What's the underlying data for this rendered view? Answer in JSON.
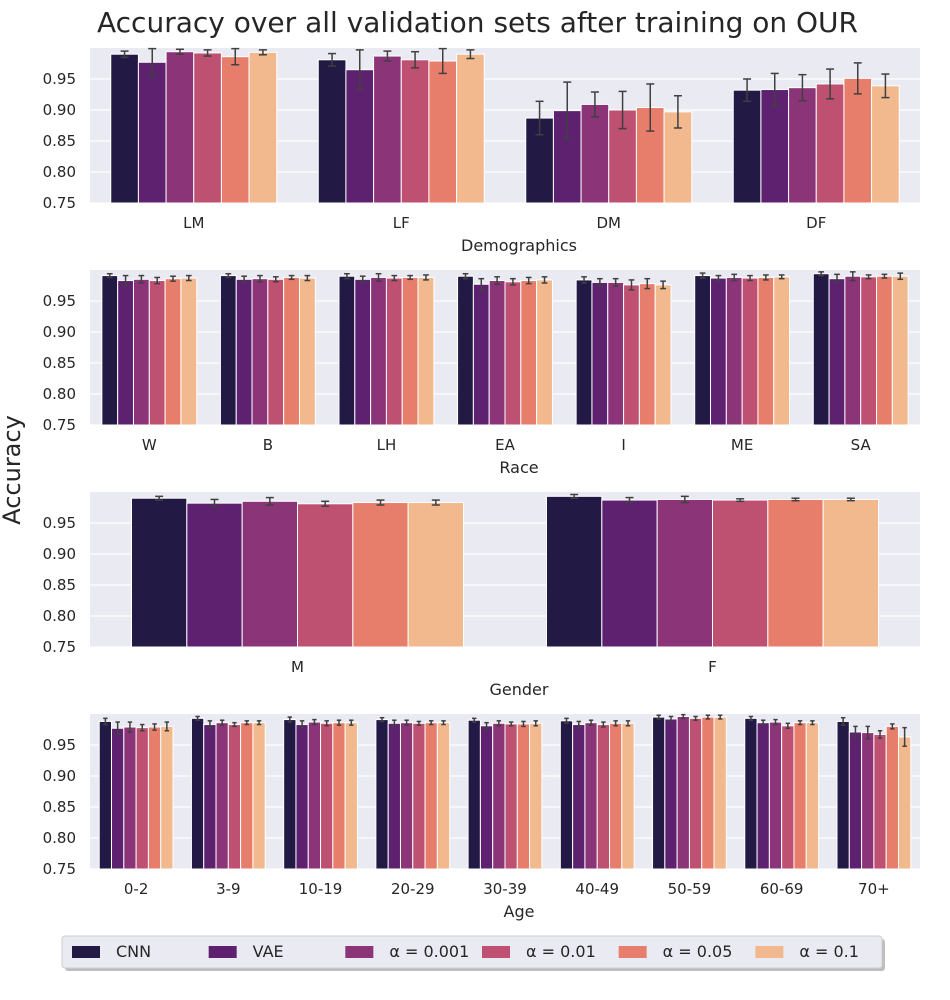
{
  "figure": {
    "title": "Accuracy over all validation sets after training on OUR",
    "ylabel": "Accuracy"
  },
  "colors": {
    "background": "#EAEAF2",
    "grid": "#FFFFFF",
    "series": [
      "#221A45",
      "#5D2170",
      "#8B3478",
      "#BE5172",
      "#E77E6B",
      "#F1B98D"
    ],
    "errorbar": "#404040"
  },
  "legend": {
    "placement": "bottom-center",
    "entries": [
      "CNN",
      "VAE",
      "α = 0.001",
      "α = 0.01",
      "α = 0.05",
      "α = 0.1"
    ]
  },
  "chart_data": [
    {
      "type": "bar",
      "xlabel": "Demographics",
      "ylabel": "",
      "ylim": [
        0.75,
        1.0
      ],
      "yticks": [
        "0.75",
        "0.80",
        "0.85",
        "0.90",
        "0.95"
      ],
      "grid": true,
      "categories": [
        "LM",
        "LF",
        "DM",
        "DF"
      ],
      "series": [
        {
          "name": "CNN",
          "values": [
            0.99,
            0.981,
            0.887,
            0.932
          ],
          "errors": [
            0.005,
            0.01,
            0.027,
            0.018
          ]
        },
        {
          "name": "VAE",
          "values": [
            0.977,
            0.965,
            0.899,
            0.933
          ],
          "errors": [
            0.022,
            0.032,
            0.046,
            0.026
          ]
        },
        {
          "name": "α = 0.001",
          "values": [
            0.994,
            0.987,
            0.909,
            0.936
          ],
          "errors": [
            0.004,
            0.008,
            0.02,
            0.021
          ]
        },
        {
          "name": "α = 0.01",
          "values": [
            0.992,
            0.981,
            0.9,
            0.942
          ],
          "errors": [
            0.005,
            0.013,
            0.03,
            0.024
          ]
        },
        {
          "name": "α = 0.05",
          "values": [
            0.986,
            0.979,
            0.904,
            0.951
          ],
          "errors": [
            0.013,
            0.02,
            0.038,
            0.025
          ]
        },
        {
          "name": "α = 0.1",
          "values": [
            0.993,
            0.99,
            0.897,
            0.939
          ],
          "errors": [
            0.004,
            0.007,
            0.026,
            0.019
          ]
        }
      ]
    },
    {
      "type": "bar",
      "xlabel": "Race",
      "ylabel": "",
      "ylim": [
        0.75,
        1.0
      ],
      "yticks": [
        "0.75",
        "0.80",
        "0.85",
        "0.90",
        "0.95"
      ],
      "grid": true,
      "categories": [
        "W",
        "B",
        "LH",
        "EA",
        "I",
        "ME",
        "SA"
      ],
      "series": [
        {
          "name": "CNN",
          "values": [
            0.991,
            0.991,
            0.99,
            0.99,
            0.984,
            0.991,
            0.994
          ],
          "errors": [
            0.003,
            0.003,
            0.004,
            0.004,
            0.005,
            0.004,
            0.003
          ]
        },
        {
          "name": "VAE",
          "values": [
            0.983,
            0.985,
            0.985,
            0.977,
            0.98,
            0.987,
            0.986
          ],
          "errors": [
            0.008,
            0.005,
            0.005,
            0.009,
            0.006,
            0.004,
            0.007
          ]
        },
        {
          "name": "α = 0.001",
          "values": [
            0.985,
            0.986,
            0.988,
            0.983,
            0.98,
            0.988,
            0.99
          ],
          "errors": [
            0.006,
            0.005,
            0.006,
            0.006,
            0.006,
            0.005,
            0.007
          ]
        },
        {
          "name": "α = 0.01",
          "values": [
            0.983,
            0.985,
            0.987,
            0.981,
            0.976,
            0.987,
            0.989
          ],
          "errors": [
            0.005,
            0.004,
            0.004,
            0.005,
            0.008,
            0.004,
            0.003
          ]
        },
        {
          "name": "α = 0.05",
          "values": [
            0.986,
            0.988,
            0.988,
            0.983,
            0.978,
            0.988,
            0.99
          ],
          "errors": [
            0.004,
            0.003,
            0.003,
            0.005,
            0.008,
            0.004,
            0.003
          ]
        },
        {
          "name": "α = 0.1",
          "values": [
            0.987,
            0.987,
            0.988,
            0.984,
            0.976,
            0.989,
            0.99
          ],
          "errors": [
            0.004,
            0.004,
            0.004,
            0.005,
            0.006,
            0.003,
            0.005
          ]
        }
      ]
    },
    {
      "type": "bar",
      "xlabel": "Gender",
      "ylabel": "",
      "ylim": [
        0.75,
        1.0
      ],
      "yticks": [
        "0.75",
        "0.80",
        "0.85",
        "0.90",
        "0.95"
      ],
      "grid": true,
      "categories": [
        "M",
        "F"
      ],
      "series": [
        {
          "name": "CNN",
          "values": [
            0.99,
            0.993
          ],
          "errors": [
            0.003,
            0.003
          ]
        },
        {
          "name": "VAE",
          "values": [
            0.982,
            0.987
          ],
          "errors": [
            0.006,
            0.004
          ]
        },
        {
          "name": "α = 0.001",
          "values": [
            0.985,
            0.988
          ],
          "errors": [
            0.006,
            0.005
          ]
        },
        {
          "name": "α = 0.01",
          "values": [
            0.981,
            0.987
          ],
          "errors": [
            0.004,
            0.002
          ]
        },
        {
          "name": "α = 0.05",
          "values": [
            0.983,
            0.988
          ],
          "errors": [
            0.004,
            0.002
          ]
        },
        {
          "name": "α = 0.1",
          "values": [
            0.983,
            0.988
          ],
          "errors": [
            0.004,
            0.002
          ]
        }
      ]
    },
    {
      "type": "bar",
      "xlabel": "Age",
      "ylabel": "",
      "ylim": [
        0.75,
        1.0
      ],
      "yticks": [
        "0.75",
        "0.80",
        "0.85",
        "0.90",
        "0.95"
      ],
      "grid": true,
      "categories": [
        "0-2",
        "3-9",
        "10-19",
        "20-29",
        "30-39",
        "40-49",
        "50-59",
        "60-69",
        "70+"
      ],
      "series": [
        {
          "name": "CNN",
          "values": [
            0.988,
            0.993,
            0.991,
            0.991,
            0.99,
            0.989,
            0.995,
            0.993,
            0.988
          ],
          "errors": [
            0.005,
            0.003,
            0.004,
            0.003,
            0.003,
            0.004,
            0.003,
            0.003,
            0.006
          ]
        },
        {
          "name": "VAE",
          "values": [
            0.977,
            0.983,
            0.983,
            0.985,
            0.981,
            0.983,
            0.992,
            0.986,
            0.971
          ],
          "errors": [
            0.01,
            0.006,
            0.006,
            0.005,
            0.005,
            0.005,
            0.004,
            0.004,
            0.009
          ]
        },
        {
          "name": "α = 0.001",
          "values": [
            0.979,
            0.986,
            0.987,
            0.986,
            0.985,
            0.986,
            0.996,
            0.987,
            0.97
          ],
          "errors": [
            0.008,
            0.004,
            0.004,
            0.004,
            0.004,
            0.004,
            0.003,
            0.004,
            0.01
          ]
        },
        {
          "name": "α = 0.01",
          "values": [
            0.978,
            0.983,
            0.985,
            0.985,
            0.984,
            0.983,
            0.993,
            0.981,
            0.967
          ],
          "errors": [
            0.005,
            0.003,
            0.004,
            0.003,
            0.003,
            0.004,
            0.003,
            0.004,
            0.006
          ]
        },
        {
          "name": "α = 0.05",
          "values": [
            0.979,
            0.986,
            0.986,
            0.986,
            0.984,
            0.985,
            0.995,
            0.986,
            0.98
          ],
          "errors": [
            0.005,
            0.003,
            0.004,
            0.003,
            0.004,
            0.004,
            0.003,
            0.003,
            0.004
          ]
        },
        {
          "name": "α = 0.1",
          "values": [
            0.98,
            0.986,
            0.986,
            0.986,
            0.985,
            0.985,
            0.995,
            0.986,
            0.963
          ],
          "errors": [
            0.007,
            0.003,
            0.004,
            0.003,
            0.004,
            0.004,
            0.003,
            0.003,
            0.015
          ]
        }
      ]
    }
  ]
}
